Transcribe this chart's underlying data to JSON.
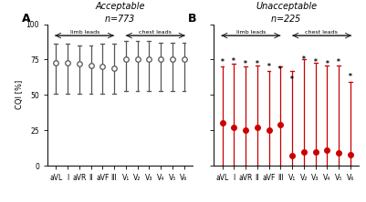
{
  "panel_A_title": "Acceptable",
  "panel_A_n": "n=773",
  "panel_B_title": "Unacceptable",
  "panel_B_n": "n=225",
  "labels": [
    "aVL",
    "I",
    "aVR",
    "II",
    "aVF",
    "III",
    "V₁",
    "V₂",
    "V₃",
    "V₄",
    "V₅",
    "V₆"
  ],
  "panel_A_median": [
    73,
    73,
    72,
    71,
    70,
    69,
    75,
    75,
    75,
    75,
    75,
    75
  ],
  "panel_A_upper": [
    86,
    86,
    85,
    85,
    86,
    86,
    88,
    88,
    88,
    87,
    87,
    87
  ],
  "panel_A_lower": [
    51,
    51,
    51,
    51,
    51,
    51,
    53,
    53,
    53,
    53,
    53,
    53
  ],
  "panel_B_median": [
    30,
    27,
    25,
    27,
    25,
    29,
    7,
    10,
    10,
    11,
    9,
    8
  ],
  "panel_B_upper": [
    70,
    72,
    70,
    71,
    67,
    70,
    67,
    75,
    73,
    71,
    71,
    59
  ],
  "panel_B_lower": [
    0,
    0,
    0,
    0,
    0,
    0,
    0,
    0,
    0,
    0,
    0,
    0
  ],
  "panel_B_star_y": [
    73,
    74,
    72,
    72,
    70,
    68,
    61,
    75,
    73,
    72,
    73,
    63
  ],
  "panel_B_has_star": [
    true,
    true,
    true,
    true,
    true,
    true,
    true,
    true,
    true,
    true,
    true,
    true
  ],
  "color_A": "#555555",
  "color_B": "#cc0000",
  "star_color": "#000000",
  "ylabel": "CQI [%]",
  "ylim": [
    0,
    100
  ],
  "yticks": [
    0,
    25,
    50,
    75,
    100
  ],
  "limb_leads_count": 6,
  "limb_arrow_label": "limb leads",
  "chest_arrow_label": "chest leads"
}
